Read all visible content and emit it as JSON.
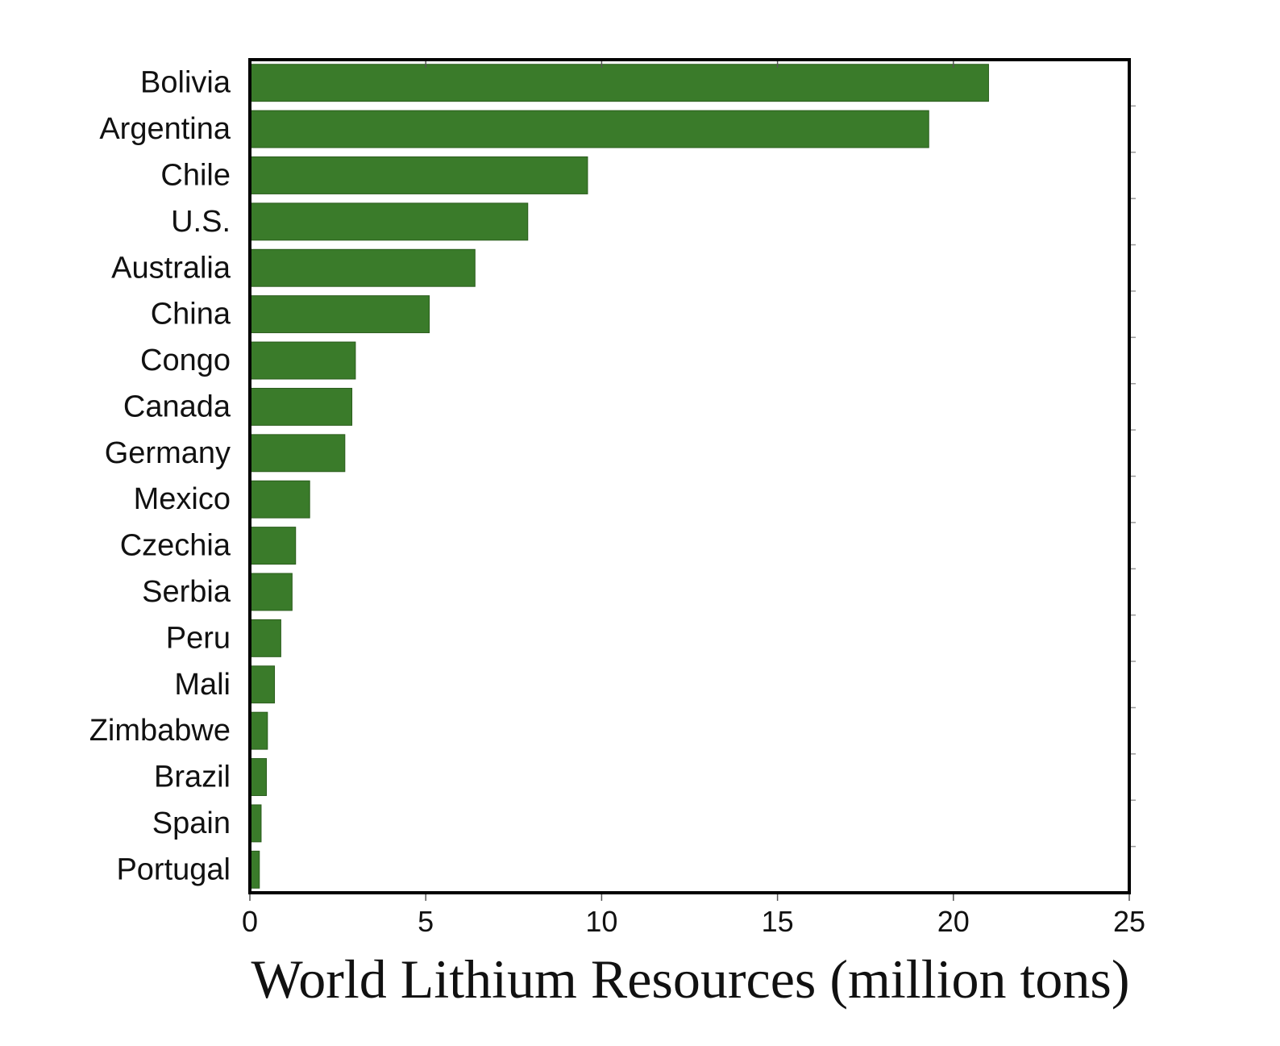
{
  "chart_data": {
    "type": "bar",
    "orientation": "horizontal",
    "title": "",
    "xlabel": "World Lithium Resources (million tons)",
    "ylabel": "",
    "xlim": [
      0,
      25
    ],
    "xticks": [
      "0",
      "5",
      "10",
      "15",
      "20",
      "25"
    ],
    "grid": false,
    "legend": "none",
    "bar_color": "#3a7b2a",
    "categories": [
      "Bolivia",
      "Argentina",
      "Chile",
      "U.S.",
      "Australia",
      "China",
      "Congo",
      "Canada",
      "Germany",
      "Mexico",
      "Czechia",
      "Serbia",
      "Peru",
      "Mali",
      "Zimbabwe",
      "Brazil",
      "Spain",
      "Portugal"
    ],
    "values": [
      21,
      19.3,
      9.6,
      7.9,
      6.4,
      5.1,
      3.0,
      2.9,
      2.7,
      1.7,
      1.3,
      1.2,
      0.88,
      0.7,
      0.5,
      0.47,
      0.32,
      0.27
    ]
  }
}
